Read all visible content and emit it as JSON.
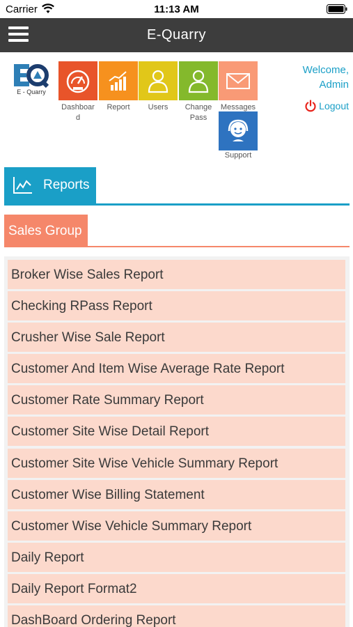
{
  "status_bar": {
    "carrier": "Carrier",
    "time": "11:13 AM"
  },
  "navbar": {
    "title": "E-Quarry"
  },
  "logo": {
    "caption": "E - Quarry"
  },
  "tiles": [
    {
      "label": "Dashboar\nd",
      "color": "#e8542a",
      "icon": "speedometer-icon"
    },
    {
      "label": "Report",
      "color": "#f6911e",
      "icon": "bar-chart-icon"
    },
    {
      "label": "Users",
      "color": "#e1c719",
      "icon": "user-icon"
    },
    {
      "label": "Change\nPass",
      "color": "#84b92c",
      "icon": "user-key-icon"
    },
    {
      "label": "Messages",
      "color": "#f99a76",
      "icon": "envelope-icon"
    },
    {
      "label": "Support",
      "color": "#2e73c0",
      "icon": "support-agent-icon"
    }
  ],
  "welcome": {
    "line1": "Welcome,",
    "line2": "Admin",
    "logout": "Logout"
  },
  "section": {
    "title": "Reports"
  },
  "group": {
    "title": "Sales Group"
  },
  "reports": [
    "Broker Wise Sales Report",
    "Checking RPass Report",
    "Crusher Wise Sale Report",
    "Customer And Item Wise Average Rate Report",
    "Customer Rate Summary Report",
    "Customer Site Wise Detail Report",
    "Customer Site Wise Vehicle Summary Report",
    "Customer Wise Billing Statement",
    "Customer Wise Vehicle Summary Report",
    "Daily Report",
    "Daily Report Format2",
    "DashBoard Ordering Report"
  ],
  "colors": {
    "accent": "#1a9fc7",
    "group": "#f5876a",
    "item_bg": "#fcd9cc",
    "navbar": "#3d3d3d"
  }
}
